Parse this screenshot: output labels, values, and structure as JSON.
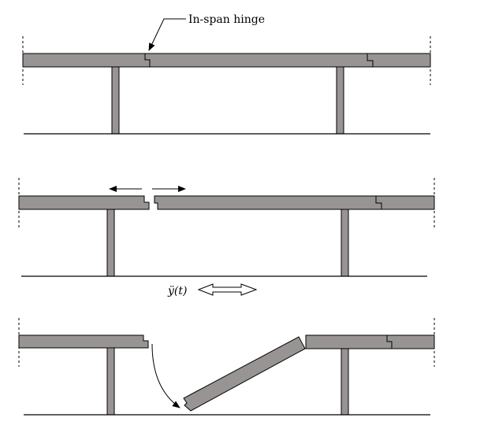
{
  "labels": {
    "hinge_label": "In-span hinge",
    "ground_motion_label": "ÿ(t)"
  },
  "colors": {
    "deck_fill": "#999494",
    "outline": "#000000",
    "background": "#ffffff"
  }
}
